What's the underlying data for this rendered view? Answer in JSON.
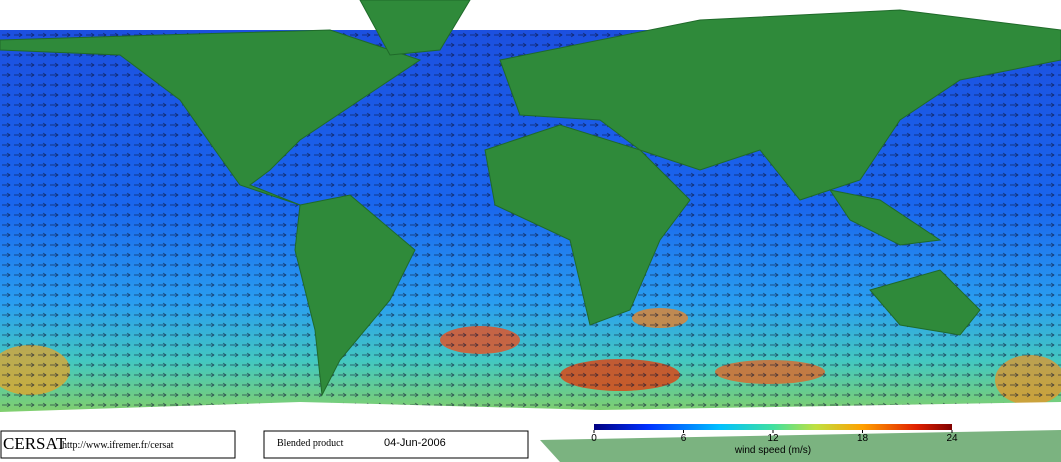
{
  "footer": {
    "logo": "CERSAT",
    "url": "http://www.ifremer.fr/cersat",
    "product": "Blended product",
    "date": "04-Jun-2006"
  },
  "colorbar": {
    "label": "wind speed (m/s)",
    "lim": [
      0,
      24
    ],
    "ticks": [
      0,
      6,
      12,
      18,
      24
    ]
  }
}
